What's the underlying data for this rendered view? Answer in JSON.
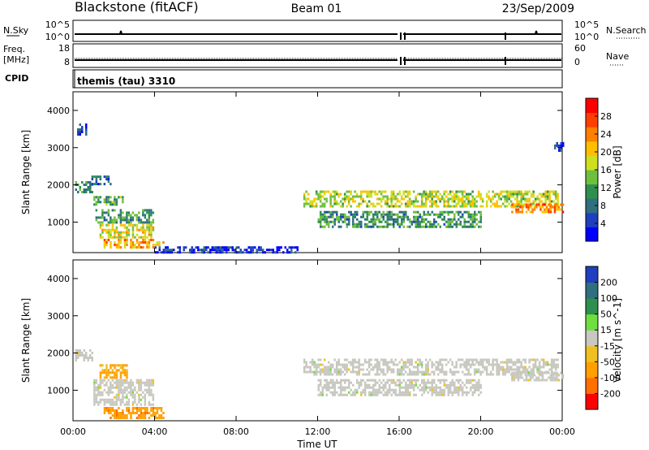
{
  "header": {
    "station": "Blackstone (fitACF)",
    "beam": "Beam 01",
    "date": "23/Sep/2009"
  },
  "strip_panels": {
    "nsky": {
      "label": "N.Sky",
      "right_label": "N.Search",
      "ticks_left": [
        "10^5",
        "10^0"
      ],
      "ticks_right": [
        "10^5",
        "10^0"
      ]
    },
    "freq": {
      "label_line1": "Freq.",
      "label_line2": "[MHz]",
      "right_label": "Nave",
      "ticks_left": [
        "18",
        "8"
      ],
      "ticks_right": [
        "60",
        "0"
      ]
    },
    "cpid": {
      "label": "CPID",
      "text": "themis (tau) 3310"
    }
  },
  "chart_data": [
    {
      "type": "heatmap",
      "title": "",
      "ylabel": "Slant Range [km]",
      "xlabel": "",
      "x_ticks": [
        "00:00",
        "04:00",
        "08:00",
        "12:00",
        "16:00",
        "20:00",
        "00:00"
      ],
      "x_range_hours": [
        0,
        24
      ],
      "y_ticks": [
        1000,
        2000,
        3000,
        4000
      ],
      "ylim": [
        180,
        4500
      ],
      "colorbar": {
        "label": "Power [dB]",
        "ticks": [
          4,
          8,
          12,
          16,
          20,
          24,
          28
        ],
        "range": [
          0,
          32
        ],
        "colors": [
          "#0000ff",
          "#1f3fbf",
          "#2f6f7f",
          "#2f8f4f",
          "#6fbf3f",
          "#cfdf1f",
          "#ffbf00",
          "#ff7f00",
          "#ff3f00",
          "#ff0000"
        ]
      },
      "series": [
        {
          "x": [
            0.1,
            0.9
          ],
          "y": [
            1800,
            2100
          ],
          "value": 10
        },
        {
          "x": [
            0.2,
            0.6
          ],
          "y": [
            3350,
            3650
          ],
          "value": 5
        },
        {
          "x": [
            0.9,
            1.8
          ],
          "y": [
            2050,
            2250
          ],
          "value": 6
        },
        {
          "x": [
            1.0,
            2.4
          ],
          "y": [
            1450,
            1700
          ],
          "value": 13
        },
        {
          "x": [
            1.0,
            3.9
          ],
          "y": [
            1000,
            1350
          ],
          "value": 11
        },
        {
          "x": [
            1.3,
            3.9
          ],
          "y": [
            600,
            950
          ],
          "value": 18
        },
        {
          "x": [
            1.5,
            4.4
          ],
          "y": [
            300,
            550
          ],
          "value": 22
        },
        {
          "x": [
            4.0,
            11.0
          ],
          "y": [
            200,
            350
          ],
          "value": 3
        },
        {
          "x": [
            11.3,
            23.8
          ],
          "y": [
            1450,
            1850
          ],
          "value": 17
        },
        {
          "x": [
            12.0,
            20.0
          ],
          "y": [
            900,
            1300
          ],
          "value": 11
        },
        {
          "x": [
            21.5,
            24.0
          ],
          "y": [
            1250,
            1500
          ],
          "value": 24
        },
        {
          "x": [
            23.6,
            24.0
          ],
          "y": [
            2900,
            3150
          ],
          "value": 5
        }
      ]
    },
    {
      "type": "heatmap",
      "title": "",
      "ylabel": "Slant Range [km]",
      "xlabel": "Time UT",
      "x_ticks": [
        "00:00",
        "04:00",
        "08:00",
        "12:00",
        "16:00",
        "20:00",
        "00:00"
      ],
      "x_range_hours": [
        0,
        24
      ],
      "y_ticks": [
        1000,
        2000,
        3000,
        4000
      ],
      "ylim": [
        180,
        4500
      ],
      "colorbar": {
        "label": "Velocity [m s^-1]",
        "ticks": [
          200,
          100,
          50,
          15,
          -15,
          -50,
          -100,
          -200
        ],
        "colors": [
          "#1f3fbf",
          "#2f6f7f",
          "#2f8f4f",
          "#6fdf3f",
          "#c8c8c0",
          "#f0c020",
          "#ff9f00",
          "#ff6f00",
          "#ff0000"
        ]
      },
      "series": [
        {
          "x": [
            0.1,
            0.9
          ],
          "y": [
            1800,
            2100
          ],
          "value": 0
        },
        {
          "x": [
            1.3,
            2.6
          ],
          "y": [
            1350,
            1700
          ],
          "value": -70
        },
        {
          "x": [
            1.0,
            3.9
          ],
          "y": [
            600,
            1300
          ],
          "value": 0
        },
        {
          "x": [
            1.5,
            4.4
          ],
          "y": [
            250,
            550
          ],
          "value": -80
        },
        {
          "x": [
            11.3,
            23.8
          ],
          "y": [
            1450,
            1850
          ],
          "value": 0
        },
        {
          "x": [
            12.0,
            20.0
          ],
          "y": [
            900,
            1300
          ],
          "value": 0
        },
        {
          "x": [
            21.5,
            24.0
          ],
          "y": [
            1250,
            1500
          ],
          "value": 0
        }
      ]
    }
  ]
}
